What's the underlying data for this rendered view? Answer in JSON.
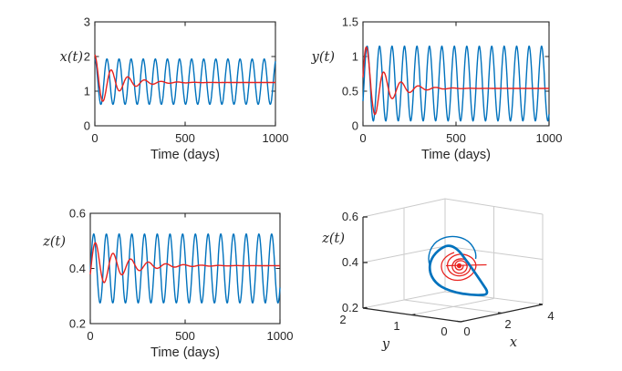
{
  "colors": {
    "blue": "#0072bd",
    "red": "#e8231f",
    "axis_text": "#262626",
    "grid3d": "#cbcbcb",
    "background": "#ffffff"
  },
  "chart_data": [
    {
      "subplot": "top-left",
      "type": "line",
      "title": "",
      "xlabel": "Time (days)",
      "ylabel": "x(t)",
      "xlim": [
        0,
        1000
      ],
      "ylim": [
        0,
        3
      ],
      "xticks": [
        0,
        500,
        1000
      ],
      "yticks": [
        0,
        1,
        2,
        3
      ],
      "grid": false,
      "legend": null,
      "series": [
        {
          "name": "periodic oscillation",
          "color": "#0072bd",
          "model": "cosine",
          "mean": 1.275,
          "amplitude": 0.655,
          "period_days": 67,
          "peak_at_day": 0,
          "approx_min": 0.62,
          "approx_max": 1.93
        },
        {
          "name": "damped oscillation",
          "color": "#e8231f",
          "model": "damped_cosine",
          "equilibrium": 1.25,
          "amplitude": 0.8,
          "decay_tau_days": 115,
          "period_days": 92,
          "peak_at_day": 0,
          "initial_value": 2.05
        }
      ]
    },
    {
      "subplot": "top-right",
      "type": "line",
      "title": "",
      "xlabel": "Time (days)",
      "ylabel": "y(t)",
      "xlim": [
        0,
        1000
      ],
      "ylim": [
        0,
        1.5
      ],
      "xticks": [
        0,
        500,
        1000
      ],
      "yticks": [
        0,
        0.5,
        1,
        1.5
      ],
      "grid": false,
      "legend": null,
      "series": [
        {
          "name": "periodic oscillation",
          "color": "#0072bd",
          "model": "cosine",
          "mean": 0.61,
          "amplitude": 0.54,
          "period_days": 67,
          "peak_at_day": 22,
          "approx_min": 0.07,
          "approx_max": 1.15
        },
        {
          "name": "damped oscillation",
          "color": "#e8231f",
          "model": "damped_cosine",
          "equilibrium": 0.54,
          "amplitude": 0.72,
          "decay_tau_days": 100,
          "period_days": 93,
          "peak_at_day": 20,
          "initial_value": 0.52
        }
      ]
    },
    {
      "subplot": "bottom-left",
      "type": "line",
      "title": "",
      "xlabel": "Time (days)",
      "ylabel": "z(t)",
      "xlim": [
        0,
        1000
      ],
      "ylim": [
        0.2,
        0.6
      ],
      "xticks": [
        0,
        500,
        1000
      ],
      "yticks": [
        0.2,
        0.4,
        0.6
      ],
      "grid": false,
      "legend": null,
      "series": [
        {
          "name": "periodic oscillation",
          "color": "#0072bd",
          "model": "cosine",
          "mean": 0.4,
          "amplitude": 0.125,
          "period_days": 67,
          "peak_at_day": 18,
          "approx_min": 0.275,
          "approx_max": 0.525
        },
        {
          "name": "damped oscillation",
          "color": "#e8231f",
          "model": "damped_cosine",
          "equilibrium": 0.41,
          "amplitude": 0.1,
          "decay_tau_days": 150,
          "period_days": 93,
          "peak_at_day": 28,
          "initial_value": 0.375
        }
      ]
    },
    {
      "subplot": "bottom-right",
      "type": "line3d",
      "title": "",
      "xlabel": "x",
      "ylabel": "y",
      "zlabel": "z(t)",
      "xlim": [
        0,
        4
      ],
      "ylim": [
        0,
        2
      ],
      "zlim": [
        0.2,
        0.6
      ],
      "xticks": [
        0,
        2,
        4
      ],
      "yticks": [
        0,
        1,
        2
      ],
      "zticks": [
        0.2,
        0.4,
        0.6
      ],
      "grid": true,
      "series": [
        {
          "name": "limit cycle",
          "color": "#0072bd",
          "style": "thick closed triangular loop around z≈0.27–0.47"
        },
        {
          "name": "spiral to equilibrium",
          "color": "#e8231f",
          "style": "trajectory spiraling inward to a focus marked with a filled dot near z≈0.4"
        }
      ]
    }
  ]
}
